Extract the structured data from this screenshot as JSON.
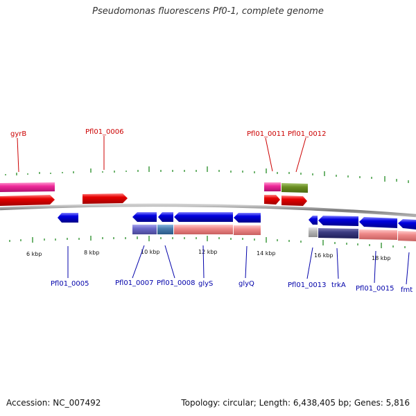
{
  "title": "Pseudomonas fluorescens Pf0-1, complete genome",
  "accession_text": "Accession: NC_007492",
  "summary_text": "Topology: circular; Length: 6,438,405 bp; Genes: 5,816",
  "colors": {
    "forward_gene": "#e60000",
    "reverse_gene": "#0000e0",
    "pink_gene": "#ee2a9a",
    "olive_gene": "#6b8e23",
    "salmon_gene": "#ef8a8a",
    "lavender_gene": "#6a68c8",
    "teal_gene": "#4a7fb0",
    "navy_gene": "#3a3a80",
    "grey_gene": "#b8b8b8",
    "tick": "#228b22",
    "backbone": "#777777",
    "label_forward": "#cc0000",
    "label_reverse": "#0000aa"
  },
  "scale_labels": [
    "6 kbp",
    "8 kbp",
    "10 kbp",
    "12 kbp",
    "14 kbp",
    "16 kbp",
    "18 kbp"
  ],
  "forward_labels": [
    "gyrB",
    "Pfl01_0006",
    "Pfl01_0011",
    "Pfl01_0012"
  ],
  "reverse_labels": [
    "Pfl01_0005",
    "Pfl01_0007",
    "Pfl01_0008",
    "glyS",
    "glyQ",
    "Pfl01_0013",
    "trkA",
    "Pfl01_0015",
    "fmt"
  ]
}
